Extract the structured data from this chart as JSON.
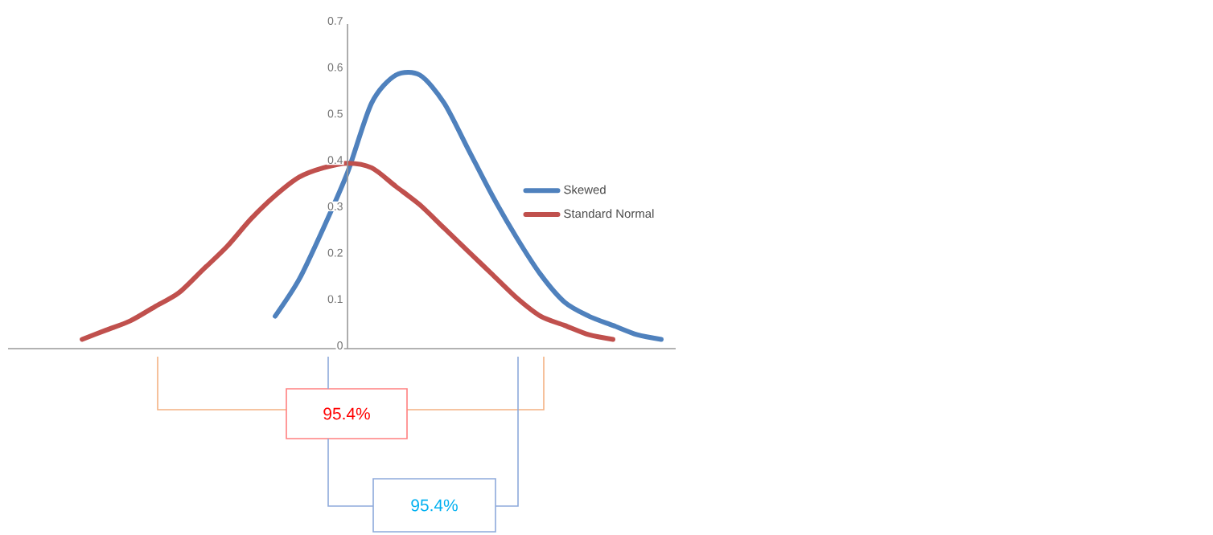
{
  "chart_data": {
    "type": "line",
    "categories": [
      null,
      null,
      null,
      null,
      null,
      null,
      null,
      null,
      null,
      null,
      null,
      null,
      null,
      null,
      null,
      null,
      null,
      null,
      null,
      null,
      null,
      null,
      null,
      null,
      null
    ],
    "series": [
      {
        "name": "Skewed",
        "color": "#4f81bd",
        "values": [
          null,
          null,
          null,
          null,
          null,
          null,
          null,
          null,
          0.07,
          0.15,
          0.26,
          0.38,
          0.53,
          0.59,
          0.59,
          0.53,
          0.43,
          0.33,
          0.24,
          0.16,
          0.1,
          0.07,
          0.05,
          0.03,
          0.02
        ]
      },
      {
        "name": "Standard Normal",
        "color": "#c0504d",
        "values": [
          0.02,
          0.04,
          0.06,
          0.09,
          0.12,
          0.17,
          0.22,
          0.28,
          0.33,
          0.37,
          0.39,
          0.4,
          0.39,
          0.35,
          0.31,
          0.26,
          0.21,
          0.16,
          0.11,
          0.07,
          0.05,
          0.03,
          0.02,
          null,
          null
        ]
      }
    ],
    "ylim": [
      0,
      0.7
    ],
    "yticks": [
      0,
      0.1,
      0.2,
      0.3,
      0.4,
      0.5,
      0.6,
      0.7
    ],
    "legend": "right",
    "line_style": "solid",
    "marker": "none",
    "annotations": [
      "95.4%",
      "95.4%"
    ]
  }
}
